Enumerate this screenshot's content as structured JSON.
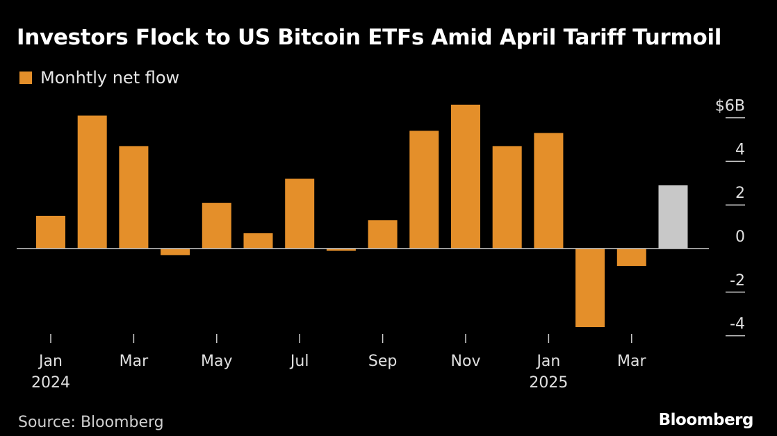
{
  "title": "Investors Flock to US Bitcoin ETFs Amid April Tariff Turmoil",
  "source": "Source: Bloomberg",
  "brand": "Bloomberg",
  "colors": {
    "background": "#000000",
    "bar": "#e48f2a",
    "bar_partial": "#c8c8c8",
    "axis": "#cccccc",
    "text": "#e0e0e0"
  },
  "chart_data": {
    "type": "bar",
    "categories": [
      "Jan 2024",
      "Feb 2024",
      "Mar 2024",
      "Apr 2024",
      "May 2024",
      "Jun 2024",
      "Jul 2024",
      "Aug 2024",
      "Sep 2024",
      "Oct 2024",
      "Nov 2024",
      "Dec 2024",
      "Jan 2025",
      "Feb 2025",
      "Mar 2025",
      "Apr 2025"
    ],
    "series": [
      {
        "name": "Monhtly net flow",
        "values": [
          1.5,
          6.1,
          4.7,
          -0.3,
          2.1,
          0.7,
          3.2,
          -0.1,
          1.3,
          5.4,
          6.6,
          4.7,
          5.3,
          -3.6,
          -0.8,
          2.9
        ]
      }
    ],
    "highlight_last": true,
    "x_tick_labels": [
      {
        "index": 0,
        "label": "Jan",
        "sublabel": "2024"
      },
      {
        "index": 2,
        "label": "Mar",
        "sublabel": ""
      },
      {
        "index": 4,
        "label": "May",
        "sublabel": ""
      },
      {
        "index": 6,
        "label": "Jul",
        "sublabel": ""
      },
      {
        "index": 8,
        "label": "Sep",
        "sublabel": ""
      },
      {
        "index": 10,
        "label": "Nov",
        "sublabel": ""
      },
      {
        "index": 12,
        "label": "Jan",
        "sublabel": "2025"
      },
      {
        "index": 14,
        "label": "Mar",
        "sublabel": ""
      }
    ],
    "y_ticks": [
      {
        "value": 6,
        "label": "$6B"
      },
      {
        "value": 4,
        "label": "4"
      },
      {
        "value": 2,
        "label": "2"
      },
      {
        "value": 0,
        "label": "0"
      },
      {
        "value": -2,
        "label": "-2"
      },
      {
        "value": -4,
        "label": "-4"
      }
    ],
    "ylim": [
      -4,
      6
    ],
    "y_axis_side": "right",
    "grid": false,
    "legend_position": "top-left"
  }
}
